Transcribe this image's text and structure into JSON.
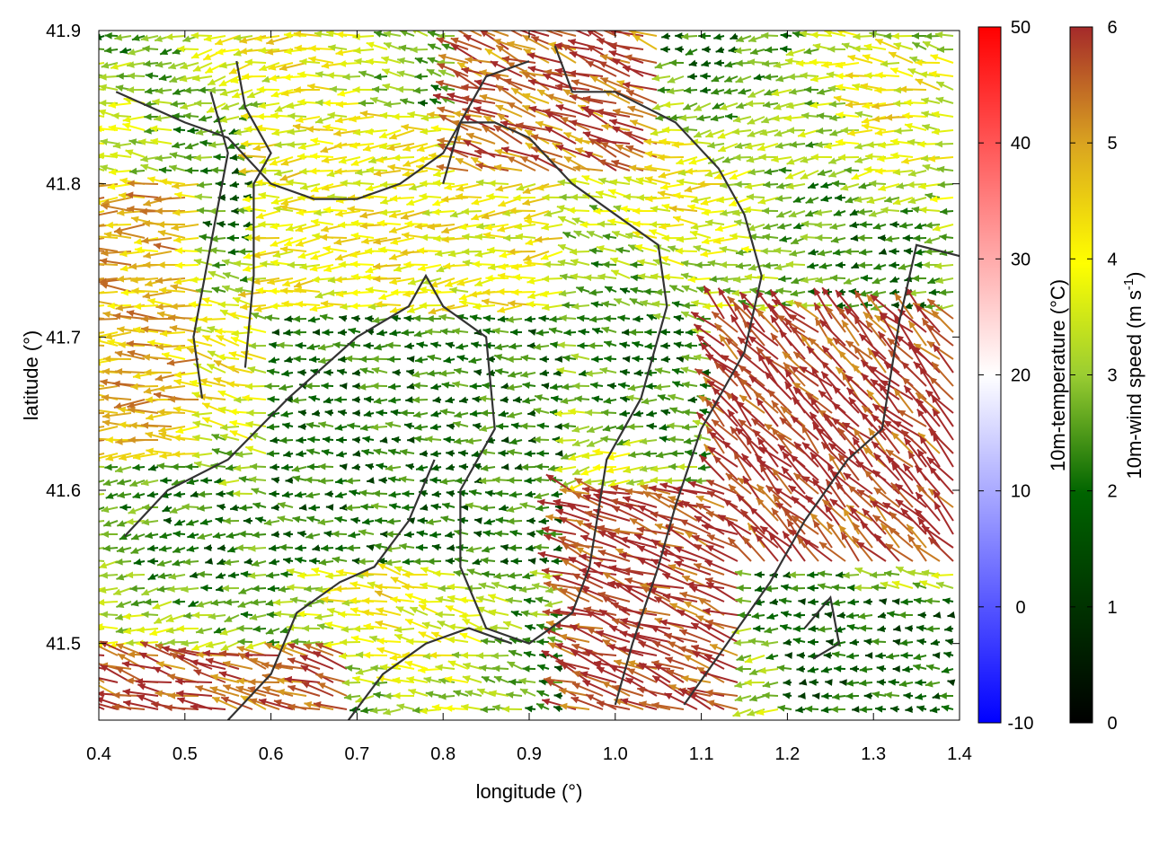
{
  "chart_data": {
    "type": "vector-field",
    "xlabel": "longitude (°)",
    "ylabel": "latitude (°)",
    "xlim": [
      0.4,
      1.4
    ],
    "ylim": [
      41.45,
      41.9
    ],
    "xticks": [
      {
        "value": 0.4,
        "label": "0.4"
      },
      {
        "value": 0.5,
        "label": "0.5"
      },
      {
        "value": 0.6,
        "label": "0.6"
      },
      {
        "value": 0.7,
        "label": "0.7"
      },
      {
        "value": 0.8,
        "label": "0.8"
      },
      {
        "value": 0.9,
        "label": "0.9"
      },
      {
        "value": 1.0,
        "label": "1.0"
      },
      {
        "value": 1.1,
        "label": "1.1"
      },
      {
        "value": 1.2,
        "label": "1.2"
      },
      {
        "value": 1.3,
        "label": "1.3"
      },
      {
        "value": 1.4,
        "label": "1.4"
      }
    ],
    "yticks": [
      {
        "value": 41.5,
        "label": "41.5"
      },
      {
        "value": 41.6,
        "label": "41.6"
      },
      {
        "value": 41.7,
        "label": "41.7"
      },
      {
        "value": 41.8,
        "label": "41.8"
      },
      {
        "value": 41.9,
        "label": "41.9"
      }
    ],
    "colorbars": [
      {
        "label": "10m-temperature (°C)",
        "range": [
          -10,
          50
        ],
        "ticks": [
          {
            "value": -10,
            "label": "-10"
          },
          {
            "value": 0,
            "label": "0"
          },
          {
            "value": 10,
            "label": "10"
          },
          {
            "value": 20,
            "label": "20"
          },
          {
            "value": 30,
            "label": "30"
          },
          {
            "value": 40,
            "label": "40"
          },
          {
            "value": 50,
            "label": "50"
          }
        ],
        "colors": [
          "#0000ff",
          "#ffffff",
          "#ff0000"
        ]
      },
      {
        "label": "10m-wind speed (m s",
        "label_sup": "-1",
        "label_close": ")",
        "range": [
          0,
          6
        ],
        "ticks": [
          {
            "value": 0,
            "label": "0"
          },
          {
            "value": 1,
            "label": "1"
          },
          {
            "value": 2,
            "label": "2"
          },
          {
            "value": 3,
            "label": "3"
          },
          {
            "value": 4,
            "label": "4"
          },
          {
            "value": 5,
            "label": "5"
          },
          {
            "value": 6,
            "label": "6"
          }
        ],
        "colors": [
          "#000000",
          "#006400",
          "#9acd32",
          "#ffff00",
          "#daa520",
          "#a52a2a"
        ]
      }
    ],
    "wind_field": {
      "note_units": "m s-1",
      "regions": [
        {
          "lon": [
            0.4,
            0.52
          ],
          "lat": [
            41.62,
            41.8
          ],
          "speed": 4.8,
          "dir_deg": 180
        },
        {
          "lon": [
            0.58,
            0.95
          ],
          "lat": [
            41.72,
            41.85
          ],
          "speed": 4.0,
          "dir_deg": 185
        },
        {
          "lon": [
            0.82,
            1.05
          ],
          "lat": [
            41.8,
            41.9
          ],
          "speed": 5.5,
          "dir_deg": 160
        },
        {
          "lon": [
            1.12,
            1.4
          ],
          "lat": [
            41.55,
            41.72
          ],
          "speed": 5.9,
          "dir_deg": 135
        },
        {
          "lon": [
            0.95,
            1.15
          ],
          "lat": [
            41.45,
            41.6
          ],
          "speed": 5.9,
          "dir_deg": 160
        },
        {
          "lon": [
            0.6,
            0.95
          ],
          "lat": [
            41.55,
            41.72
          ],
          "speed": 2.0,
          "dir_deg": 180
        },
        {
          "lon": [
            0.4,
            0.7
          ],
          "lat": [
            41.45,
            41.5
          ],
          "speed": 5.7,
          "dir_deg": 165
        },
        {
          "lon": [
            1.2,
            1.4
          ],
          "lat": [
            41.45,
            41.53
          ],
          "speed": 1.8,
          "dir_deg": 180
        }
      ]
    },
    "contours": [
      [
        [
          0.42,
          41.86
        ],
        [
          0.5,
          41.84
        ],
        [
          0.55,
          41.83
        ],
        [
          0.6,
          41.8
        ],
        [
          0.65,
          41.79
        ],
        [
          0.7,
          41.79
        ],
        [
          0.75,
          41.8
        ],
        [
          0.8,
          41.82
        ],
        [
          0.85,
          41.87
        ],
        [
          0.9,
          41.88
        ]
      ],
      [
        [
          0.52,
          41.66
        ],
        [
          0.51,
          41.7
        ],
        [
          0.53,
          41.76
        ],
        [
          0.55,
          41.82
        ],
        [
          0.53,
          41.86
        ]
      ],
      [
        [
          0.57,
          41.68
        ],
        [
          0.58,
          41.74
        ],
        [
          0.58,
          41.8
        ],
        [
          0.6,
          41.82
        ],
        [
          0.57,
          41.85
        ],
        [
          0.56,
          41.88
        ]
      ],
      [
        [
          0.43,
          41.57
        ],
        [
          0.48,
          41.6
        ],
        [
          0.55,
          41.62
        ],
        [
          0.62,
          41.66
        ],
        [
          0.7,
          41.7
        ],
        [
          0.76,
          41.72
        ],
        [
          0.78,
          41.74
        ],
        [
          0.8,
          41.72
        ],
        [
          0.85,
          41.7
        ],
        [
          0.86,
          41.64
        ],
        [
          0.82,
          41.6
        ],
        [
          0.82,
          41.55
        ],
        [
          0.85,
          41.51
        ],
        [
          0.9,
          41.5
        ],
        [
          0.95,
          41.52
        ],
        [
          0.97,
          41.55
        ],
        [
          0.99,
          41.62
        ],
        [
          1.03,
          41.66
        ],
        [
          1.06,
          41.72
        ],
        [
          1.05,
          41.76
        ],
        [
          1.0,
          41.78
        ],
        [
          0.95,
          41.8
        ],
        [
          0.9,
          41.83
        ],
        [
          0.86,
          41.84
        ],
        [
          0.82,
          41.84
        ],
        [
          0.8,
          41.8
        ]
      ],
      [
        [
          0.93,
          41.89
        ],
        [
          0.95,
          41.86
        ],
        [
          1.0,
          41.86
        ],
        [
          1.07,
          41.84
        ],
        [
          1.12,
          41.81
        ],
        [
          1.15,
          41.78
        ],
        [
          1.17,
          41.74
        ],
        [
          1.15,
          41.69
        ],
        [
          1.1,
          41.64
        ],
        [
          1.07,
          41.59
        ],
        [
          1.05,
          41.55
        ],
        [
          1.02,
          41.5
        ],
        [
          1.0,
          41.46
        ]
      ],
      [
        [
          1.42,
          41.75
        ],
        [
          1.35,
          41.76
        ],
        [
          1.33,
          41.71
        ],
        [
          1.31,
          41.64
        ],
        [
          1.27,
          41.62
        ],
        [
          1.22,
          41.58
        ],
        [
          1.18,
          41.54
        ],
        [
          1.13,
          41.5
        ],
        [
          1.08,
          41.46
        ]
      ],
      [
        [
          0.55,
          41.45
        ],
        [
          0.6,
          41.48
        ],
        [
          0.63,
          41.52
        ],
        [
          0.68,
          41.54
        ],
        [
          0.72,
          41.55
        ],
        [
          0.76,
          41.58
        ],
        [
          0.79,
          41.62
        ]
      ],
      [
        [
          0.69,
          41.45
        ],
        [
          0.73,
          41.48
        ],
        [
          0.78,
          41.5
        ],
        [
          0.83,
          41.51
        ],
        [
          0.88,
          41.5
        ]
      ],
      [
        [
          1.22,
          41.51
        ],
        [
          1.25,
          41.53
        ],
        [
          1.26,
          41.5
        ],
        [
          1.23,
          41.49
        ]
      ]
    ]
  }
}
